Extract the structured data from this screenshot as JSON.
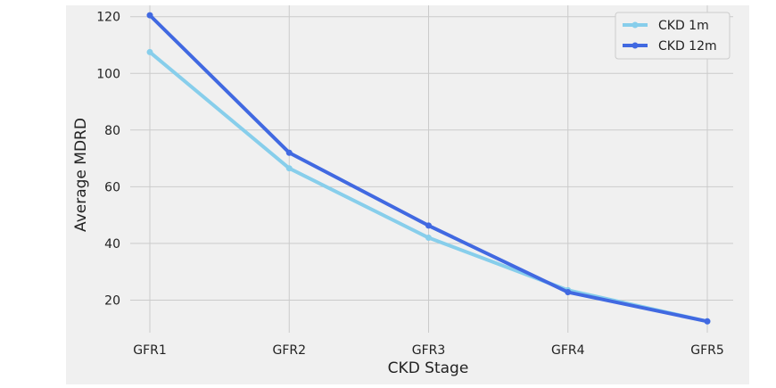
{
  "chart_data": {
    "type": "line",
    "title": "",
    "xlabel": "CKD Stage",
    "ylabel": "Average MDRD",
    "categories": [
      "GFR1",
      "GFR2",
      "GFR3",
      "GFR4",
      "GFR5"
    ],
    "ylim": [
      8.5,
      124
    ],
    "yticks": [
      20,
      40,
      60,
      80,
      100,
      120
    ],
    "grid": true,
    "legend_position": "top-right",
    "series": [
      {
        "name": "CKD 1m",
        "color": "#87CEEB",
        "values": [
          107.5,
          66.5,
          42.0,
          23.5,
          12.5
        ]
      },
      {
        "name": "CKD 12m",
        "color": "#4169E1",
        "values": [
          120.5,
          72.0,
          46.3,
          22.8,
          12.5
        ]
      }
    ]
  }
}
